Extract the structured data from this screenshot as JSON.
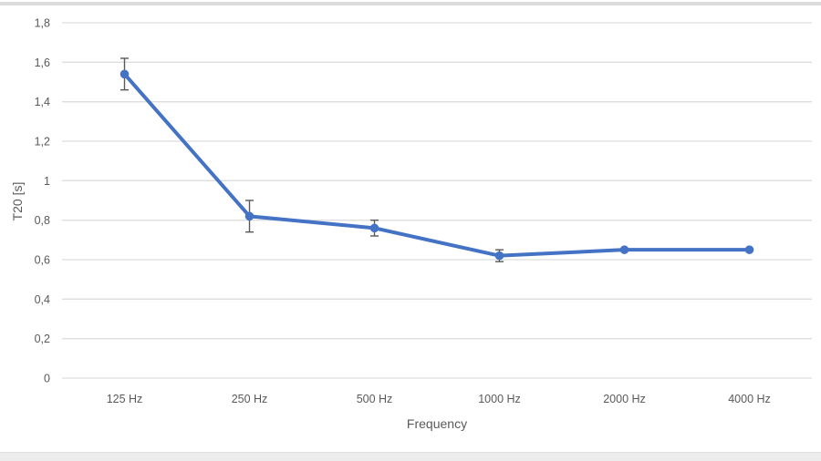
{
  "page": {
    "background": "#ffffff",
    "top_border_color": "#dcdcdc",
    "bottom_band_color": "#ececec"
  },
  "chart_data": {
    "type": "line",
    "xlabel": "Frequency",
    "ylabel": "T20 [s]",
    "categories": [
      "125 Hz",
      "250 Hz",
      "500 Hz",
      "1000 Hz",
      "2000 Hz",
      "4000 Hz"
    ],
    "series": [
      {
        "name": "T20",
        "values": [
          1.54,
          0.82,
          0.76,
          0.62,
          0.65,
          0.65
        ],
        "error_plus": [
          0.08,
          0.08,
          0.04,
          0.03,
          0,
          0
        ],
        "error_minus": [
          0.08,
          0.08,
          0.04,
          0.03,
          0,
          0
        ],
        "color": "#4472C4"
      }
    ],
    "ylim": [
      0,
      1.8
    ],
    "ytick_step": 0.2,
    "ytick_labels": [
      "0",
      "0,2",
      "0,4",
      "0,6",
      "0,8",
      "1",
      "1,2",
      "1,4",
      "1,6",
      "1,8"
    ],
    "grid": true,
    "gridline_color": "#dedede",
    "label_color": "#595959",
    "errorbar_color": "#595959",
    "legend_position": "none",
    "decimal_separator": ","
  }
}
